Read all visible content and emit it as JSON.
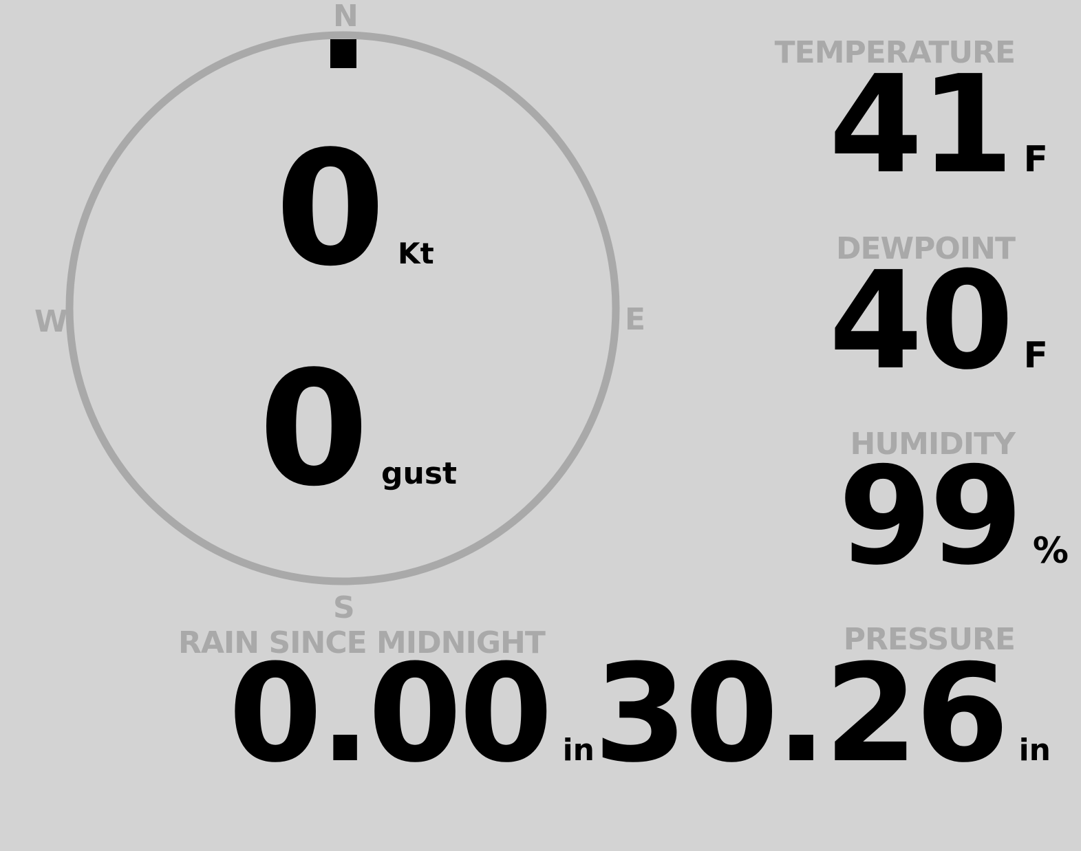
{
  "compass": {
    "north": "N",
    "south": "S",
    "east": "E",
    "west": "W",
    "direction_deg": 0,
    "ring_color": "#a9a9a9"
  },
  "wind": {
    "speed": "0",
    "speed_unit": "Kt",
    "gust": "0",
    "gust_unit": "gust"
  },
  "temperature": {
    "label": "TEMPERATURE",
    "value": "41",
    "unit": "F"
  },
  "dewpoint": {
    "label": "DEWPOINT",
    "value": "40",
    "unit": "F"
  },
  "humidity": {
    "label": "HUMIDITY",
    "value": "99",
    "unit": "%"
  },
  "rain": {
    "label": "RAIN SINCE MIDNIGHT",
    "value": "0.00",
    "unit": "in"
  },
  "pressure": {
    "label": "PRESSURE",
    "value": "30.26",
    "unit": "in"
  }
}
